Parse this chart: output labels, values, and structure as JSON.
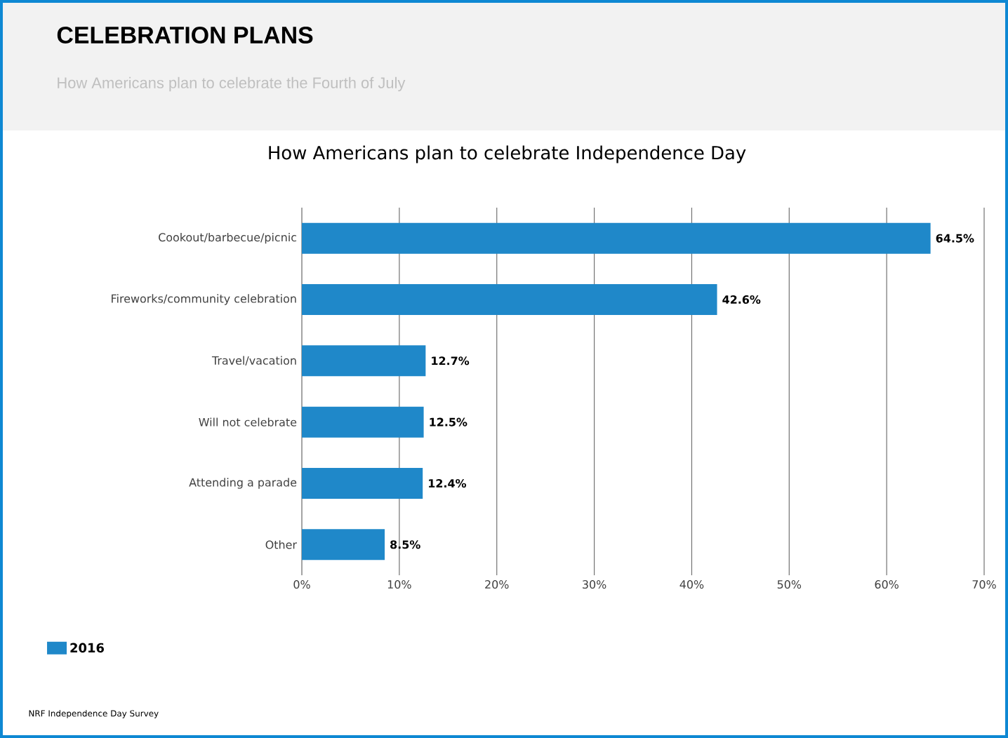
{
  "chart_data": {
    "type": "bar",
    "orientation": "horizontal",
    "title": "How Americans plan to celebrate Independence Day",
    "annotations": [
      "CELEBRATION PLANS",
      "How Americans plan to celebrate the Fourth of July",
      "NRF Independence Day Survey"
    ],
    "categories": [
      "Cookout/barbecue/picnic",
      "Fireworks/community celebration",
      "Travel/vacation",
      "Will not celebrate",
      "Attending a parade",
      "Other"
    ],
    "series": [
      {
        "name": "2016",
        "color": "#1f88c9",
        "values": [
          64.5,
          42.6,
          12.7,
          12.5,
          12.4,
          8.5
        ],
        "value_labels": [
          "64.5%",
          "42.6%",
          "12.7%",
          "12.5%",
          "12.4%",
          "8.5%"
        ]
      }
    ],
    "xlim": [
      0,
      70
    ],
    "xticks": [
      {
        "value": 0,
        "label": "0%"
      },
      {
        "value": 10,
        "label": "10%"
      },
      {
        "value": 20,
        "label": "20%"
      },
      {
        "value": 30,
        "label": "30%"
      },
      {
        "value": 40,
        "label": "40%"
      },
      {
        "value": 50,
        "label": "50%"
      },
      {
        "value": 60,
        "label": "60%"
      },
      {
        "value": 70,
        "label": "70%"
      }
    ],
    "grid": "x",
    "legend": "bottom left"
  }
}
